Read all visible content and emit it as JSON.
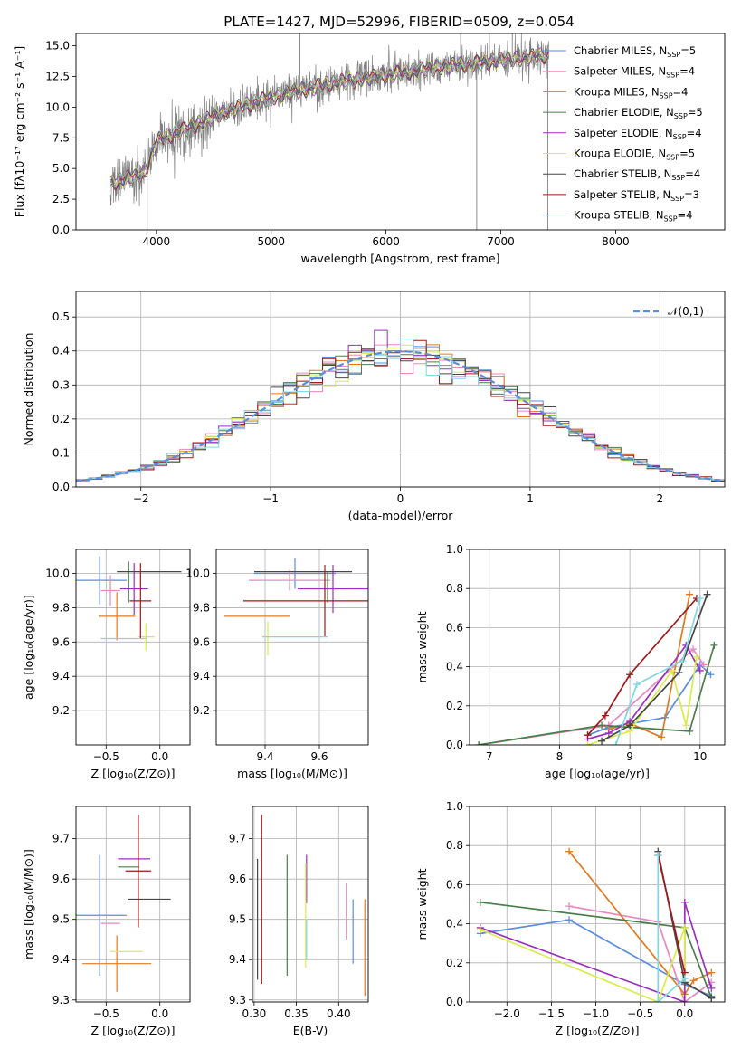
{
  "title": "PLATE=1427, MJD=52996, FIBERID=0509, z=0.054",
  "colors": {
    "chabrier_miles": "#5b8de0",
    "salpeter_miles": "#e889c0",
    "kroupa_miles": "#e07b22",
    "chabrier_elodie": "#4a7f4a",
    "salpeter_elodie": "#9b2fbf",
    "kroupa_elodie": "#d8ec4a",
    "chabrier_stelib": "#474747",
    "salpeter_stelib": "#a01818",
    "kroupa_stelib": "#7fd8e6",
    "data": "#808080",
    "normal": "#5b8de0",
    "grid": "#b0b0b0"
  },
  "models": [
    {
      "key": "chabrier_miles",
      "label": "Chabrier MILES, N",
      "n": "5"
    },
    {
      "key": "salpeter_miles",
      "label": "Salpeter MILES, N",
      "n": "4"
    },
    {
      "key": "kroupa_miles",
      "label": "Kroupa MILES, N",
      "n": "4"
    },
    {
      "key": "chabrier_elodie",
      "label": "Chabrier ELODIE, N",
      "n": "5"
    },
    {
      "key": "salpeter_elodie",
      "label": "Salpeter ELODIE, N",
      "n": "4"
    },
    {
      "key": "kroupa_elodie",
      "label": "Kroupa ELODIE, N",
      "n": "5"
    },
    {
      "key": "chabrier_stelib",
      "label": "Chabrier STELIB, N",
      "n": "4"
    },
    {
      "key": "salpeter_stelib",
      "label": "Salpeter STELIB, N",
      "n": "3"
    },
    {
      "key": "kroupa_stelib",
      "label": "Kroupa STELIB, N",
      "n": "4"
    }
  ],
  "chart_data": [
    {
      "id": "spectrum",
      "type": "line",
      "xlabel": "wavelength [Angstrom, rest frame]",
      "ylabel": "Flux [fλ10⁻¹⁷ erg cm⁻² s⁻¹ A⁻¹]",
      "xlim": [
        3300,
        8950
      ],
      "ylim": [
        0,
        16
      ],
      "xticks": [
        "4000",
        "5000",
        "6000",
        "7000",
        "8000"
      ],
      "xtick_values": [
        4000,
        5000,
        6000,
        7000,
        8000
      ],
      "yticks": [
        "0.0",
        "2.5",
        "5.0",
        "7.5",
        "10.0",
        "12.5",
        "15.0"
      ],
      "ytick_values": [
        0,
        2.5,
        5,
        7.5,
        10,
        12.5,
        15
      ],
      "continuum": [
        [
          3600,
          3.8
        ],
        [
          3900,
          4.6
        ],
        [
          4000,
          7.2
        ],
        [
          4300,
          8.4
        ],
        [
          4600,
          9.6
        ],
        [
          5000,
          10.8
        ],
        [
          5500,
          11.9
        ],
        [
          6000,
          12.6
        ],
        [
          6500,
          13.3
        ],
        [
          7000,
          13.8
        ],
        [
          7400,
          14.2
        ]
      ],
      "spikes": [
        [
          3920,
          0
        ],
        [
          6790,
          0
        ],
        [
          7410,
          0
        ],
        [
          5250,
          16
        ],
        [
          6650,
          16
        ],
        [
          6900,
          16
        ],
        [
          7100,
          16
        ]
      ]
    },
    {
      "id": "residuals",
      "type": "histogram",
      "xlabel": "(data-model)/error",
      "ylabel": "Normed distribution",
      "xlim": [
        -2.5,
        2.5
      ],
      "ylim": [
        0,
        0.575
      ],
      "xticks": [
        "−2",
        "−1",
        "0",
        "1",
        "2"
      ],
      "xtick_values": [
        -2,
        -1,
        0,
        1,
        2
      ],
      "yticks": [
        "0.0",
        "0.1",
        "0.2",
        "0.3",
        "0.4",
        "0.5"
      ],
      "ytick_values": [
        0,
        0.1,
        0.2,
        0.3,
        0.4,
        0.5
      ],
      "bin_width": 0.1,
      "legend": "𝒩(0,1)",
      "normal_mean": 0,
      "normal_sigma": 1
    },
    {
      "id": "z_age",
      "type": "scatter",
      "xlabel": "Z [log₁₀(Z/Z⊙)]",
      "ylabel": "age  [log₁₀(age/yr)]",
      "xlim": [
        -0.78,
        0.28
      ],
      "ylim": [
        9.0,
        10.14
      ],
      "xticks": [
        "−0.5",
        "0.0"
      ],
      "xtick_values": [
        -0.5,
        0
      ],
      "yticks": [
        "9.2",
        "9.4",
        "9.6",
        "9.8",
        "10.0"
      ],
      "ytick_values": [
        9.2,
        9.4,
        9.6,
        9.8,
        10.0
      ],
      "points": [
        {
          "model": "chabrier_miles",
          "x": -0.56,
          "y": 9.96,
          "xerr": 0.25,
          "yerr": 0.14
        },
        {
          "model": "salpeter_miles",
          "x": -0.46,
          "y": 9.9,
          "xerr": 0.09,
          "yerr": 0.09
        },
        {
          "model": "kroupa_miles",
          "x": -0.4,
          "y": 9.75,
          "xerr": 0.17,
          "yerr": 0.14
        },
        {
          "model": "chabrier_elodie",
          "x": -0.29,
          "y": 9.95,
          "xerr": 0.0,
          "yerr": 0.12
        },
        {
          "model": "salpeter_elodie",
          "x": -0.24,
          "y": 9.91,
          "xerr": 0.13,
          "yerr": 0.15
        },
        {
          "model": "kroupa_elodie",
          "x": -0.13,
          "y": 9.63,
          "xerr": 0.08,
          "yerr": 0.08
        },
        {
          "model": "chabrier_stelib",
          "x": -0.1,
          "y": 10.01,
          "xerr": 0.3,
          "yerr": 0.0
        },
        {
          "model": "salpeter_stelib",
          "x": -0.18,
          "y": 9.84,
          "xerr": 0.1,
          "yerr": 0.22
        },
        {
          "model": "kroupa_stelib",
          "x": -0.34,
          "y": 9.62,
          "xerr": 0.21,
          "yerr": 0.0
        }
      ]
    },
    {
      "id": "mass_age",
      "type": "scatter",
      "xlabel": "mass [log₁₀(M/M⊙)]",
      "ylabel": "",
      "xlim": [
        9.22,
        9.78
      ],
      "ylim": [
        9.0,
        10.14
      ],
      "xticks": [
        "9.4",
        "9.6"
      ],
      "xtick_values": [
        9.4,
        9.6
      ],
      "yticks": [
        "9.2",
        "9.4",
        "9.6",
        "9.8",
        "10.0"
      ],
      "ytick_values": [
        9.2,
        9.4,
        9.6,
        9.8,
        10.0
      ],
      "points": [
        {
          "model": "chabrier_miles",
          "x": 9.51,
          "y": 10.0,
          "xerr": 0.15,
          "yerr": 0.09
        },
        {
          "model": "salpeter_miles",
          "x": 9.49,
          "y": 9.96,
          "xerr": 0.15,
          "yerr": 0.06
        },
        {
          "model": "kroupa_miles",
          "x": 9.37,
          "y": 9.75,
          "xerr": 0.12,
          "yerr": 0.0
        },
        {
          "model": "chabrier_elodie",
          "x": 9.63,
          "y": 9.92,
          "xerr": 0.0,
          "yerr": 0.09
        },
        {
          "model": "salpeter_elodie",
          "x": 9.65,
          "y": 9.91,
          "xerr": 0.13,
          "yerr": 0.14
        },
        {
          "model": "kroupa_elodie",
          "x": 9.41,
          "y": 9.62,
          "xerr": 0.0,
          "yerr": 0.1
        },
        {
          "model": "chabrier_stelib",
          "x": 9.54,
          "y": 10.01,
          "xerr": 0.18,
          "yerr": 0.0
        },
        {
          "model": "salpeter_stelib",
          "x": 9.62,
          "y": 9.84,
          "xerr": 0.3,
          "yerr": 0.21
        },
        {
          "model": "kroupa_stelib",
          "x": 9.51,
          "y": 9.63,
          "xerr": 0.12,
          "yerr": 0.0
        }
      ]
    },
    {
      "id": "age_weight",
      "type": "line",
      "xlabel": "age  [log₁₀(age/yr)]",
      "ylabel": "mass weight",
      "xlim": [
        6.72,
        10.35
      ],
      "ylim": [
        0,
        1
      ],
      "xticks": [
        "7",
        "8",
        "9",
        "10"
      ],
      "xtick_values": [
        7,
        8,
        9,
        10
      ],
      "yticks": [
        "0.0",
        "0.2",
        "0.4",
        "0.6",
        "0.8",
        "1.0"
      ],
      "ytick_values": [
        0,
        0.2,
        0.4,
        0.6,
        0.8,
        1.0
      ],
      "series": [
        {
          "model": "chabrier_miles",
          "x": [
            8.4,
            8.7,
            9.5,
            10.0,
            10.15
          ],
          "y": [
            0.05,
            0.09,
            0.14,
            0.41,
            0.36
          ]
        },
        {
          "model": "salpeter_miles",
          "x": [
            6.85,
            8.7,
            9.9,
            10.05
          ],
          "y": [
            0.0,
            0.1,
            0.49,
            0.41
          ]
        },
        {
          "model": "kroupa_miles",
          "x": [
            8.7,
            9.0,
            9.45,
            9.85
          ],
          "y": [
            0.08,
            0.11,
            0.04,
            0.77
          ]
        },
        {
          "model": "chabrier_elodie",
          "x": [
            6.85,
            8.6,
            9.85,
            10.2
          ],
          "y": [
            0.0,
            0.1,
            0.07,
            0.51
          ]
        },
        {
          "model": "salpeter_elodie",
          "x": [
            8.4,
            8.7,
            9.0,
            9.8,
            10.0
          ],
          "y": [
            0.03,
            0.06,
            0.12,
            0.51,
            0.38
          ]
        },
        {
          "model": "kroupa_elodie",
          "x": [
            8.4,
            9.0,
            9.6,
            9.8,
            9.95
          ],
          "y": [
            0.0,
            0.07,
            0.38,
            0.1,
            0.45
          ]
        },
        {
          "model": "chabrier_stelib",
          "x": [
            8.6,
            9.0,
            9.7,
            10.1
          ],
          "y": [
            0.02,
            0.1,
            0.37,
            0.77
          ]
        },
        {
          "model": "salpeter_stelib",
          "x": [
            8.4,
            8.65,
            9.0,
            9.95
          ],
          "y": [
            0.05,
            0.15,
            0.36,
            0.75
          ]
        },
        {
          "model": "kroupa_stelib",
          "x": [
            8.8,
            9.1,
            9.75,
            10.0
          ],
          "y": [
            0.0,
            0.31,
            0.43,
            0.75
          ]
        }
      ]
    },
    {
      "id": "z_mass",
      "type": "scatter",
      "xlabel": "Z [log₁₀(Z/Z⊙)]",
      "ylabel": "mass [log₁₀(M/M⊙)]",
      "xlim": [
        -0.78,
        0.28
      ],
      "ylim": [
        9.295,
        9.78
      ],
      "xticks": [
        "−0.5",
        "0.0"
      ],
      "xtick_values": [
        -0.5,
        0
      ],
      "yticks": [
        "9.3",
        "9.4",
        "9.5",
        "9.6",
        "9.7"
      ],
      "ytick_values": [
        9.3,
        9.4,
        9.5,
        9.6,
        9.7
      ],
      "points": [
        {
          "model": "chabrier_miles",
          "x": -0.56,
          "y": 9.51,
          "xerr": 0.25,
          "yerr": 0.15
        },
        {
          "model": "salpeter_miles",
          "x": -0.46,
          "y": 9.49,
          "xerr": 0.09,
          "yerr": 0.0
        },
        {
          "model": "kroupa_miles",
          "x": -0.4,
          "y": 9.39,
          "xerr": 0.32,
          "yerr": 0.07
        },
        {
          "model": "chabrier_elodie",
          "x": -0.29,
          "y": 9.63,
          "xerr": 0.1,
          "yerr": 0.0
        },
        {
          "model": "salpeter_elodie",
          "x": -0.24,
          "y": 9.65,
          "xerr": 0.15,
          "yerr": 0.0
        },
        {
          "model": "kroupa_elodie",
          "x": -0.31,
          "y": 9.42,
          "xerr": 0.15,
          "yerr": 0.0
        },
        {
          "model": "chabrier_stelib",
          "x": -0.1,
          "y": 9.55,
          "xerr": 0.2,
          "yerr": 0.0
        },
        {
          "model": "salpeter_stelib",
          "x": -0.2,
          "y": 9.62,
          "xerr": 0.12,
          "yerr": 0.14
        },
        {
          "model": "kroupa_stelib",
          "x": -0.18,
          "y": 9.55,
          "xerr": 0.0,
          "yerr": 0.0
        }
      ]
    },
    {
      "id": "ebv_mass",
      "type": "errorbar",
      "xlabel": "E(B-V)",
      "ylabel": "",
      "xlim": [
        0.298,
        0.435
      ],
      "ylim": [
        9.295,
        9.78
      ],
      "xticks": [
        "0.30",
        "0.35",
        "0.40"
      ],
      "xtick_values": [
        0.3,
        0.35,
        0.4
      ],
      "yticks": [
        "9.3",
        "9.4",
        "9.5",
        "9.6",
        "9.7"
      ],
      "ytick_values": [
        9.3,
        9.4,
        9.5,
        9.6,
        9.7
      ],
      "points": [
        {
          "model": "chabrier_miles",
          "x": 0.417,
          "y": 9.47,
          "yerr": 0.08
        },
        {
          "model": "salpeter_miles",
          "x": 0.409,
          "y": 9.52,
          "yerr": 0.07
        },
        {
          "model": "kroupa_miles",
          "x": 0.431,
          "y": 9.43,
          "yerr": 0.12
        },
        {
          "model": "chabrier_elodie",
          "x": 0.339,
          "y": 9.51,
          "yerr": 0.15
        },
        {
          "model": "salpeter_elodie",
          "x": 0.362,
          "y": 9.6,
          "yerr": 0.06
        },
        {
          "model": "kroupa_elodie",
          "x": 0.361,
          "y": 9.51,
          "yerr": 0.13
        },
        {
          "model": "chabrier_stelib",
          "x": 0.304,
          "y": 9.5,
          "yerr": 0.15
        },
        {
          "model": "salpeter_stelib",
          "x": 0.309,
          "y": 9.55,
          "yerr": 0.21
        },
        {
          "model": "kroupa_stelib",
          "x": 0.362,
          "y": 9.45,
          "yerr": 0.05
        }
      ]
    },
    {
      "id": "z_weight",
      "type": "line",
      "xlabel": "Z [log₁₀(Z/Z⊙)]",
      "ylabel": "mass weight",
      "xlim": [
        -2.42,
        0.45
      ],
      "ylim": [
        0,
        1
      ],
      "xticks": [
        "−2.0",
        "−1.5",
        "−1.0",
        "−0.5",
        "0.0"
      ],
      "xtick_values": [
        -2,
        -1.5,
        -1,
        -0.5,
        0
      ],
      "yticks": [
        "0.0",
        "0.2",
        "0.4",
        "0.6",
        "0.8",
        "1.0"
      ],
      "ytick_values": [
        0,
        0.2,
        0.4,
        0.6,
        0.8,
        1.0
      ],
      "series": [
        {
          "model": "chabrier_miles",
          "x": [
            -2.3,
            -1.3,
            0.0,
            0.3
          ],
          "y": [
            0.35,
            0.42,
            0.09,
            0.03
          ]
        },
        {
          "model": "salpeter_miles",
          "x": [
            -1.3,
            -0.3,
            0.0,
            0.3
          ],
          "y": [
            0.49,
            0.41,
            0.0,
            0.1
          ]
        },
        {
          "model": "kroupa_miles",
          "x": [
            -1.3,
            0.0,
            0.1,
            0.3
          ],
          "y": [
            0.77,
            0.04,
            0.11,
            0.15
          ]
        },
        {
          "model": "chabrier_elodie",
          "x": [
            -2.3,
            0.0,
            0.3
          ],
          "y": [
            0.51,
            0.38,
            0.02
          ]
        },
        {
          "model": "salpeter_elodie",
          "x": [
            -2.3,
            0.0,
            0.0,
            0.3
          ],
          "y": [
            0.38,
            0.0,
            0.51,
            0.07
          ]
        },
        {
          "model": "kroupa_elodie",
          "x": [
            -2.3,
            -0.3,
            0.0,
            0.0
          ],
          "y": [
            0.37,
            0.0,
            0.38,
            0.1
          ]
        },
        {
          "model": "chabrier_stelib",
          "x": [
            -0.3,
            0.0,
            0.3
          ],
          "y": [
            0.77,
            0.1,
            0.02
          ]
        },
        {
          "model": "salpeter_stelib",
          "x": [
            -0.3,
            0.0
          ],
          "y": [
            0.75,
            0.15
          ]
        },
        {
          "model": "kroupa_stelib",
          "x": [
            -0.3,
            -0.3,
            0.0
          ],
          "y": [
            0.75,
            0.0,
            0.12
          ]
        }
      ]
    }
  ]
}
